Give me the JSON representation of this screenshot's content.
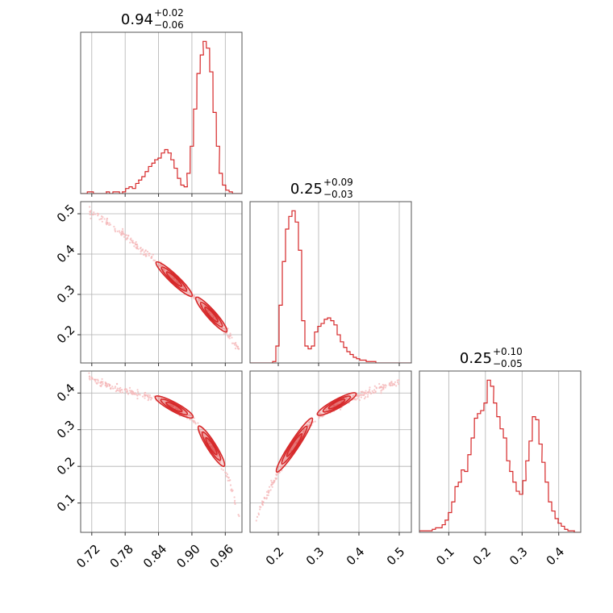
{
  "chart_data": {
    "type": "corner",
    "color": "#d62728",
    "point_color": "#f4b6b7",
    "grid": true,
    "params": [
      {
        "id": "p1",
        "range": [
          0.7,
          0.99
        ],
        "ticks": [
          0.72,
          0.78,
          0.84,
          0.9,
          0.96
        ],
        "tick_labels": [
          "0.72",
          "0.78",
          "0.84",
          "0.90",
          "0.96"
        ],
        "title": {
          "value": "0.94",
          "plus": "+0.02",
          "minus": "−0.06"
        }
      },
      {
        "id": "p2",
        "range": [
          0.13,
          0.53
        ],
        "ticks": [
          0.2,
          0.3,
          0.4,
          0.5
        ],
        "tick_labels": [
          "0.2",
          "0.3",
          "0.4",
          "0.5"
        ],
        "title": {
          "value": "0.25",
          "plus": "+0.09",
          "minus": "−0.03"
        }
      },
      {
        "id": "p3",
        "range": [
          0.02,
          0.46
        ],
        "ticks": [
          0.1,
          0.2,
          0.3,
          0.4
        ],
        "tick_labels": [
          "0.1",
          "0.2",
          "0.3",
          "0.4"
        ],
        "title": {
          "value": "0.25",
          "plus": "+0.10",
          "minus": "−0.05"
        }
      }
    ],
    "histograms": [
      {
        "param": "p1",
        "bin_width": 0.0058,
        "x": [
          0.7,
          0.706,
          0.712,
          0.717,
          0.723,
          0.729,
          0.735,
          0.741,
          0.746,
          0.752,
          0.758,
          0.764,
          0.77,
          0.775,
          0.781,
          0.787,
          0.793,
          0.799,
          0.804,
          0.81,
          0.816,
          0.822,
          0.828,
          0.833,
          0.839,
          0.845,
          0.851,
          0.857,
          0.862,
          0.868,
          0.874,
          0.88,
          0.886,
          0.891,
          0.897,
          0.903,
          0.909,
          0.915,
          0.92,
          0.926,
          0.932,
          0.938,
          0.944,
          0.949,
          0.955,
          0.961,
          0.967,
          0.973,
          0.978,
          0.984
        ],
        "counts": [
          0,
          0,
          1,
          1,
          0,
          0,
          0,
          0,
          1,
          0,
          1,
          1,
          0,
          1,
          3,
          4,
          3,
          6,
          8,
          10,
          13,
          16,
          18,
          20,
          21,
          24,
          26,
          24,
          20,
          15,
          9,
          5,
          4,
          12,
          28,
          50,
          71,
          82,
          90,
          86,
          72,
          48,
          28,
          12,
          5,
          2,
          1,
          0,
          0,
          0
        ]
      },
      {
        "param": "p2",
        "bin_width": 0.008,
        "x": [
          0.13,
          0.138,
          0.146,
          0.154,
          0.162,
          0.17,
          0.178,
          0.186,
          0.194,
          0.202,
          0.21,
          0.218,
          0.226,
          0.234,
          0.242,
          0.25,
          0.258,
          0.266,
          0.274,
          0.282,
          0.29,
          0.298,
          0.306,
          0.314,
          0.322,
          0.33,
          0.338,
          0.346,
          0.354,
          0.362,
          0.37,
          0.378,
          0.386,
          0.394,
          0.402,
          0.41,
          0.418,
          0.426,
          0.434,
          0.442,
          0.45,
          0.458,
          0.466,
          0.474,
          0.482,
          0.49,
          0.498,
          0.506,
          0.514,
          0.522
        ],
        "counts": [
          0,
          0,
          0,
          0,
          0,
          0,
          0,
          1,
          12,
          41,
          72,
          95,
          104,
          108,
          100,
          80,
          30,
          12,
          10,
          12,
          22,
          26,
          28,
          31,
          32,
          30,
          27,
          20,
          15,
          11,
          8,
          6,
          4,
          3,
          2,
          2,
          1,
          1,
          1,
          0,
          0,
          0,
          0,
          0,
          0,
          0,
          0,
          0,
          0,
          0
        ]
      },
      {
        "param": "p3",
        "bin_width": 0.0088,
        "x": [
          0.02,
          0.029,
          0.038,
          0.046,
          0.055,
          0.064,
          0.073,
          0.082,
          0.09,
          0.099,
          0.108,
          0.117,
          0.126,
          0.134,
          0.143,
          0.152,
          0.161,
          0.17,
          0.178,
          0.187,
          0.196,
          0.205,
          0.214,
          0.222,
          0.231,
          0.24,
          0.249,
          0.258,
          0.266,
          0.275,
          0.284,
          0.293,
          0.302,
          0.31,
          0.319,
          0.328,
          0.337,
          0.346,
          0.354,
          0.363,
          0.372,
          0.381,
          0.39,
          0.398,
          0.407,
          0.416,
          0.425,
          0.434,
          0.442,
          0.451
        ],
        "counts": [
          1,
          1,
          1,
          1,
          2,
          3,
          3,
          5,
          8,
          13,
          20,
          30,
          33,
          41,
          40,
          51,
          62,
          75,
          78,
          80,
          85,
          100,
          96,
          85,
          76,
          68,
          62,
          47,
          40,
          33,
          27,
          25,
          34,
          47,
          60,
          76,
          74,
          58,
          46,
          33,
          20,
          14,
          9,
          6,
          4,
          2,
          1,
          1,
          0,
          0
        ]
      }
    ],
    "pairs": [
      {
        "x": "p1",
        "y": "p2",
        "ridge_x": [
          0.715,
          0.75,
          0.78,
          0.81,
          0.84,
          0.87,
          0.9,
          0.93,
          0.96,
          0.985
        ],
        "ridge_y": [
          0.508,
          0.475,
          0.445,
          0.41,
          0.378,
          0.338,
          0.3,
          0.258,
          0.21,
          0.165
        ],
        "modes": [
          {
            "x": 0.868,
            "y": 0.338,
            "dx": 0.028,
            "dy": 0.025
          },
          {
            "x": 0.935,
            "y": 0.25,
            "dx": 0.025,
            "dy": 0.025
          }
        ]
      },
      {
        "x": "p1",
        "y": "p3",
        "ridge_x": [
          0.715,
          0.75,
          0.78,
          0.81,
          0.84,
          0.87,
          0.9,
          0.925,
          0.95,
          0.97,
          0.985
        ],
        "ridge_y": [
          0.44,
          0.42,
          0.405,
          0.395,
          0.382,
          0.362,
          0.33,
          0.275,
          0.215,
          0.15,
          0.06
        ],
        "modes": [
          {
            "x": 0.868,
            "y": 0.362,
            "dx": 0.028,
            "dy": 0.018
          },
          {
            "x": 0.935,
            "y": 0.255,
            "dx": 0.022,
            "dy": 0.035
          }
        ]
      },
      {
        "x": "p2",
        "y": "p3",
        "ridge_x": [
          0.145,
          0.17,
          0.19,
          0.21,
          0.24,
          0.27,
          0.3,
          0.34,
          0.38,
          0.42,
          0.47,
          0.5
        ],
        "ridge_y": [
          0.06,
          0.12,
          0.16,
          0.2,
          0.25,
          0.3,
          0.335,
          0.362,
          0.385,
          0.4,
          0.42,
          0.43
        ],
        "modes": [
          {
            "x": 0.24,
            "y": 0.258,
            "dx": 0.035,
            "dy": 0.055
          },
          {
            "x": 0.345,
            "y": 0.37,
            "dx": 0.04,
            "dy": 0.018
          }
        ]
      }
    ]
  }
}
